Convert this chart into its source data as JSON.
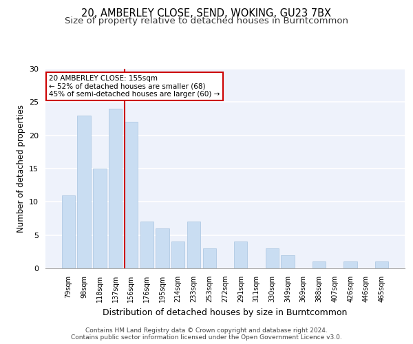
{
  "title1": "20, AMBERLEY CLOSE, SEND, WOKING, GU23 7BX",
  "title2": "Size of property relative to detached houses in Burntcommon",
  "xlabel": "Distribution of detached houses by size in Burntcommon",
  "ylabel": "Number of detached properties",
  "categories": [
    "79sqm",
    "98sqm",
    "118sqm",
    "137sqm",
    "156sqm",
    "176sqm",
    "195sqm",
    "214sqm",
    "233sqm",
    "253sqm",
    "272sqm",
    "291sqm",
    "311sqm",
    "330sqm",
    "349sqm",
    "369sqm",
    "388sqm",
    "407sqm",
    "426sqm",
    "446sqm",
    "465sqm"
  ],
  "values": [
    11,
    23,
    15,
    24,
    22,
    7,
    6,
    4,
    7,
    3,
    0,
    4,
    0,
    3,
    2,
    0,
    1,
    0,
    1,
    0,
    1
  ],
  "bar_color": "#c9ddf2",
  "bar_edge_color": "#a8c4e0",
  "vline_index": 4,
  "annotation_line1": "20 AMBERLEY CLOSE: 155sqm",
  "annotation_line2": "← 52% of detached houses are smaller (68)",
  "annotation_line3": "45% of semi-detached houses are larger (60) →",
  "annotation_box_color": "#ffffff",
  "annotation_box_edge_color": "#cc0000",
  "vline_color": "#cc0000",
  "ylim": [
    0,
    30
  ],
  "yticks": [
    0,
    5,
    10,
    15,
    20,
    25,
    30
  ],
  "footer1": "Contains HM Land Registry data © Crown copyright and database right 2024.",
  "footer2": "Contains public sector information licensed under the Open Government Licence v3.0.",
  "background_color": "#eef2fb",
  "grid_color": "#ffffff",
  "title_fontsize": 10.5,
  "subtitle_fontsize": 9.5,
  "bar_width": 0.85
}
